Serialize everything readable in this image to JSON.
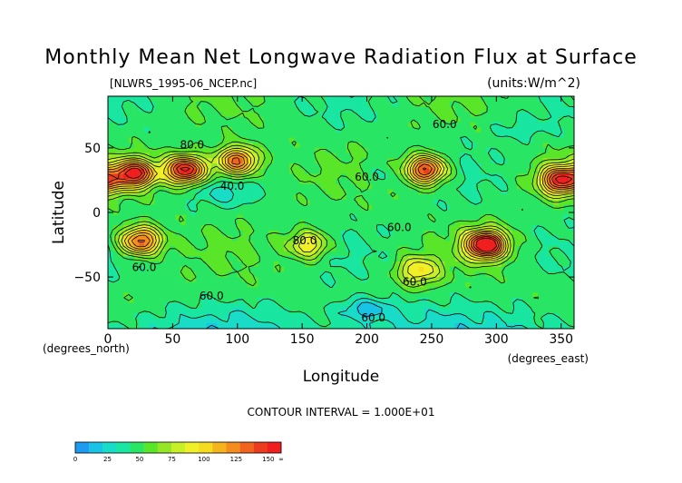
{
  "chart_data": {
    "type": "heatmap",
    "title": "Monthly Mean Net Longwave Radiation Flux at Surface",
    "file_label": "[NLWRS_1995-06_NCEP.nc]",
    "units_label": "(units:W/m^2)",
    "xlabel": "Longitude",
    "x_unit_label": "(degrees_east)",
    "ylabel": "Latitude",
    "y_unit_label": "(degrees_north)",
    "xlim": [
      0,
      360
    ],
    "ylim": [
      -90,
      90
    ],
    "x_ticks": [
      0,
      50,
      100,
      150,
      200,
      250,
      300,
      350
    ],
    "y_ticks": [
      50,
      0,
      -50
    ],
    "contour_interval_text": "CONTOUR INTERVAL = 1.000E+01",
    "contour_labels": [
      {
        "text": "80.0",
        "x": 65,
        "y": 52
      },
      {
        "text": "40.0",
        "x": 96,
        "y": 20
      },
      {
        "text": "60.0",
        "x": 200,
        "y": 27
      },
      {
        "text": "60.0",
        "x": 260,
        "y": 68
      },
      {
        "text": "60.0",
        "x": 225,
        "y": -12
      },
      {
        "text": "80.0",
        "x": 152,
        "y": -22
      },
      {
        "text": "60.0",
        "x": 28,
        "y": -43
      },
      {
        "text": "60.0",
        "x": 237,
        "y": -54
      },
      {
        "text": "60.0",
        "x": 80,
        "y": -65
      },
      {
        "text": "60.0",
        "x": 205,
        "y": -82
      }
    ],
    "colorbar": {
      "levels": [
        0,
        10,
        20,
        30,
        40,
        50,
        60,
        70,
        80,
        90,
        100,
        110,
        120,
        130,
        140,
        150
      ],
      "colors": [
        "#1e9bf0",
        "#19c3e6",
        "#19dcc8",
        "#19e6a0",
        "#28e664",
        "#5ae628",
        "#96e628",
        "#c8f028",
        "#f0f028",
        "#f5dc1e",
        "#f5b41e",
        "#f58c1e",
        "#f0641e",
        "#eb3c1e",
        "#f01e1e"
      ],
      "tick_labels": [
        "0",
        "25",
        "50",
        "75",
        "100",
        "125",
        "150",
        "∞"
      ],
      "tick_positions": [
        0,
        25,
        50,
        75,
        100,
        125,
        150,
        160
      ]
    },
    "field_summary": {
      "background_value": 45,
      "high_regions": [
        {
          "lon": 20,
          "lat": 30,
          "value": 145
        },
        {
          "lon": 60,
          "lat": 33,
          "value": 150
        },
        {
          "lon": 100,
          "lat": 40,
          "value": 130
        },
        {
          "lon": 245,
          "lat": 33,
          "value": 140
        },
        {
          "lon": 350,
          "lat": 25,
          "value": 140
        },
        {
          "lon": 25,
          "lat": -22,
          "value": 130
        },
        {
          "lon": 292,
          "lat": -25,
          "value": 160
        },
        {
          "lon": 155,
          "lat": -25,
          "value": 95
        },
        {
          "lon": 240,
          "lat": -45,
          "value": 90
        }
      ],
      "low_regions": [
        {
          "lon": 90,
          "lat": 15,
          "value": 30
        },
        {
          "lon": 220,
          "lat": 30,
          "value": 35
        },
        {
          "lon": 200,
          "lat": -75,
          "value": 15
        },
        {
          "lon": 320,
          "lat": 65,
          "value": 35
        }
      ]
    }
  }
}
